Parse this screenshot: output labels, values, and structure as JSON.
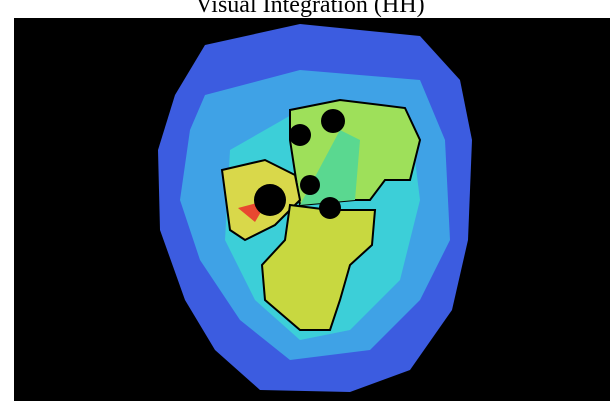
{
  "title": "Visual Integration (HH)"
}
